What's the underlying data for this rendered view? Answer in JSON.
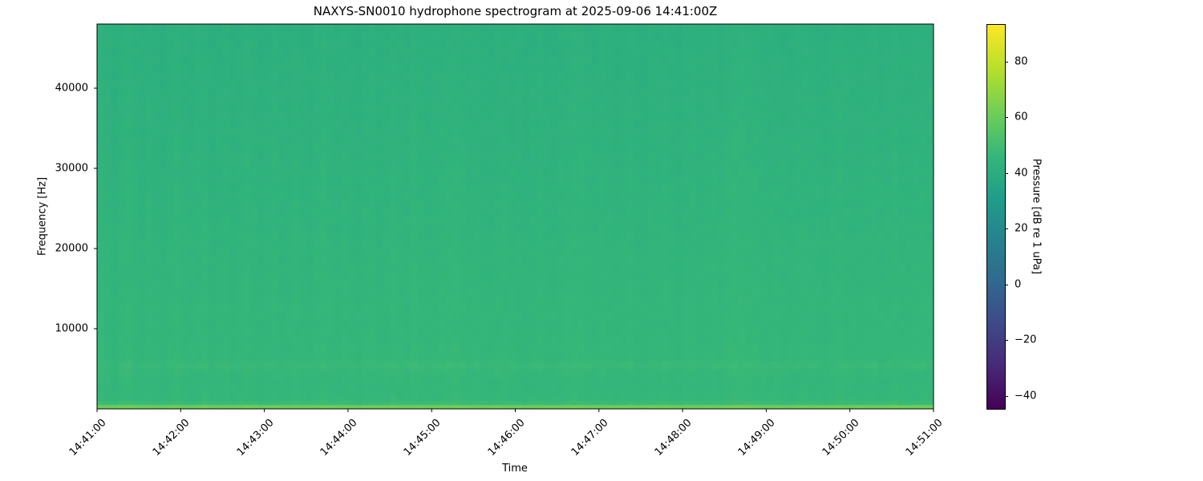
{
  "chart_data": {
    "type": "heatmap",
    "title": "NAXYS-SN0010 hydrophone spectrogram at 2025-09-06 14:41:00Z",
    "xlabel": "Time",
    "ylabel": "Frequency [Hz]",
    "colorbar_label": "Pressure [dB re 1 uPa]",
    "colormap": "viridis",
    "x_ticks": [
      "14:41:00",
      "14:42:00",
      "14:43:00",
      "14:44:00",
      "14:45:00",
      "14:46:00",
      "14:47:00",
      "14:48:00",
      "14:49:00",
      "14:50:00",
      "14:51:00"
    ],
    "xlim": [
      "14:41:00",
      "14:51:00"
    ],
    "y_ticks": [
      10000,
      20000,
      30000,
      40000
    ],
    "ylim": [
      0,
      48000
    ],
    "colorbar_ticks": [
      -40,
      -20,
      0,
      20,
      40,
      60,
      80
    ],
    "clim": [
      -44.6,
      93.5
    ],
    "freq_bin_edges_hz": [
      0,
      500,
      1000,
      2000,
      3000,
      4000,
      5000,
      6000,
      7000,
      8000,
      9000,
      10000,
      11000,
      12000,
      13000,
      14000,
      15000,
      16000,
      17000,
      18000,
      19000,
      20000,
      21000,
      22000,
      23000,
      24000,
      25000,
      26000,
      27000,
      28000,
      29000,
      30000,
      31000,
      32000,
      33000,
      34000,
      35000,
      36000,
      37000,
      38000,
      39000,
      40000,
      41000,
      42000,
      43000,
      44000,
      45000,
      46000,
      47000,
      48000
    ],
    "freq_profile_db": [
      62,
      49,
      47,
      46.5,
      46.5,
      47,
      48,
      46.5,
      46.5,
      46.3,
      46.2,
      46,
      46,
      46.2,
      46,
      45.8,
      45.6,
      45.5,
      45.5,
      45.4,
      45.3,
      45.2,
      45,
      44.8,
      44.7,
      44.6,
      44.5,
      44.4,
      44.3,
      44.2,
      44.1,
      44,
      43.9,
      43.8,
      43.7,
      43.6,
      43.5,
      43.4,
      43.3,
      43.2,
      43.1,
      43,
      42.9,
      42.8,
      42.7,
      42.6,
      42.5,
      42.4,
      42.3
    ],
    "time_offset_db": [
      1.0,
      0.3,
      -0.4,
      0.6,
      1.2,
      0.2,
      -0.3,
      0.5,
      0.0,
      -0.6,
      0.4,
      0.9,
      0.1,
      -0.2,
      0.3,
      0.7,
      -0.5,
      0.0,
      0.4,
      -0.3,
      0.2,
      0.8,
      0.3,
      -0.4,
      0.1,
      0.5,
      -0.2,
      0.0,
      0.6,
      0.2,
      -0.3,
      0.4,
      1.0,
      0.3,
      -0.1,
      0.5,
      0.2,
      -0.4,
      0.3,
      0.6,
      0.0,
      0.4,
      0.9,
      0.5,
      0.2,
      1.3,
      0.6,
      0.1,
      0.3,
      0.8,
      1.1,
      1.4,
      0.7,
      0.3,
      0.5,
      0.0,
      -0.2,
      0.4,
      0.6,
      0.1,
      0.3,
      -0.3,
      0.2,
      0.5,
      0.0,
      -0.1,
      0.4,
      0.7,
      0.9,
      1.0,
      0.4,
      0.1,
      0.6,
      0.3,
      -0.2,
      0.2,
      0.5,
      0.0,
      -0.3,
      0.4,
      0.2,
      0.6,
      0.1,
      -0.2,
      0.3,
      0.5,
      0.0,
      0.4,
      0.7,
      0.2,
      1.0,
      1.3,
      1.5,
      1.1,
      0.8,
      0.5,
      0.3,
      0.6,
      0.2,
      0.0,
      0.4,
      0.7,
      0.3,
      0.1,
      -0.2,
      0.5,
      0.8,
      0.4,
      0.2,
      0.0,
      0.3,
      0.6,
      0.1,
      0.4,
      0.9,
      0.3,
      0.2,
      0.5,
      0.7,
      0.4
    ]
  }
}
